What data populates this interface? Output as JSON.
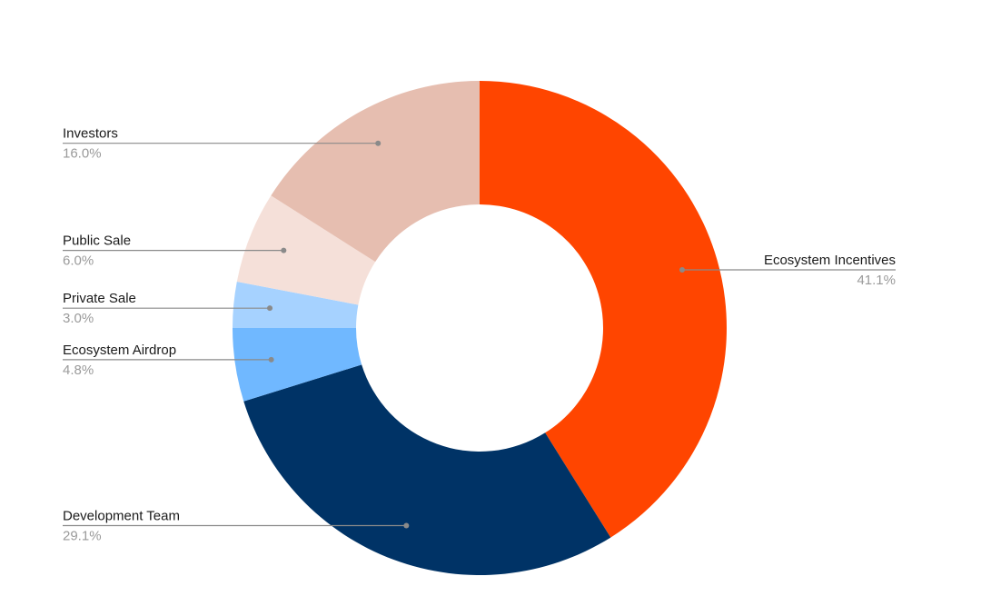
{
  "chart_data": {
    "type": "pie",
    "style": "donut",
    "title": "",
    "start_angle_deg": 0,
    "direction": "clockwise",
    "slices": [
      {
        "label": "Ecosystem Incentives",
        "value": 41.1,
        "value_label": "41.1%",
        "color": "#ff4500",
        "label_side": "right"
      },
      {
        "label": "Development Team",
        "value": 29.1,
        "value_label": "29.1%",
        "color": "#003366",
        "label_side": "left"
      },
      {
        "label": "Ecosystem Airdrop",
        "value": 4.8,
        "value_label": "4.8%",
        "color": "#70b8ff",
        "label_side": "left"
      },
      {
        "label": "Private Sale",
        "value": 3.0,
        "value_label": "3.0%",
        "color": "#a6d2ff",
        "label_side": "left"
      },
      {
        "label": "Public Sale",
        "value": 6.0,
        "value_label": "6.0%",
        "color": "#f5e0d9",
        "label_side": "left"
      },
      {
        "label": "Investors",
        "value": 16.0,
        "value_label": "16.0%",
        "color": "#e6beb0",
        "label_side": "left"
      }
    ]
  }
}
